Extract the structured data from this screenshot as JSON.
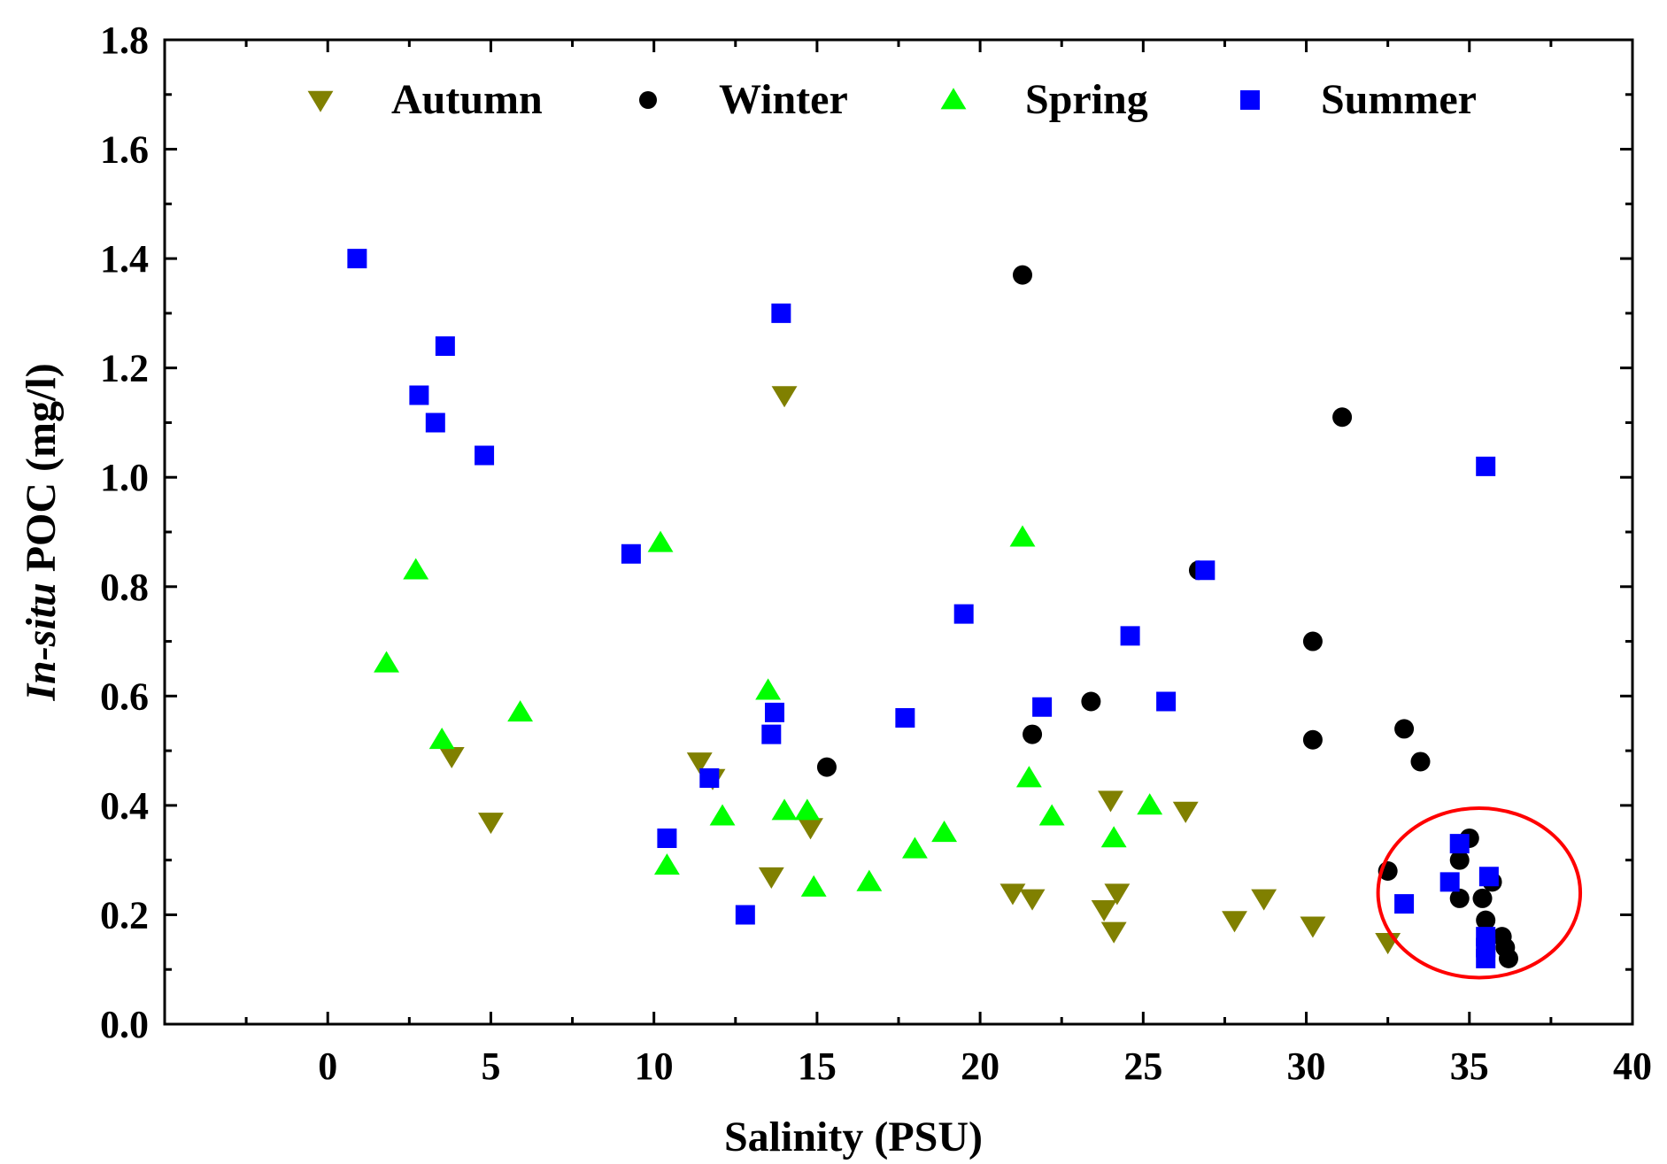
{
  "chart_data": {
    "type": "scatter",
    "title": "",
    "xlabel": "Salinity (PSU)",
    "ylabel_italic": "In-situ",
    "ylabel_rest": " POC (mg/l)",
    "xlim": [
      -5,
      40
    ],
    "ylim": [
      0.0,
      1.8
    ],
    "x_ticks": [
      0,
      5,
      10,
      15,
      20,
      25,
      30,
      35,
      40
    ],
    "x_tick_labels": [
      "0",
      "5",
      "10",
      "15",
      "20",
      "25",
      "30",
      "35",
      "40"
    ],
    "y_ticks": [
      0.0,
      0.2,
      0.4,
      0.6,
      0.8,
      1.0,
      1.2,
      1.4,
      1.6,
      1.8
    ],
    "y_tick_labels": [
      "0.0",
      "0.2",
      "0.4",
      "0.6",
      "0.8",
      "1.0",
      "1.2",
      "1.4",
      "1.6",
      "1.8"
    ],
    "grid": false,
    "legend_position": "top",
    "series": [
      {
        "name": "Autumn",
        "marker": "triangle-down",
        "color": "#808000",
        "points": [
          [
            3.8,
            0.49
          ],
          [
            5.0,
            0.37
          ],
          [
            11.4,
            0.48
          ],
          [
            11.8,
            0.45
          ],
          [
            13.6,
            0.27
          ],
          [
            14.0,
            1.15
          ],
          [
            14.8,
            0.36
          ],
          [
            21.0,
            0.24
          ],
          [
            21.6,
            0.23
          ],
          [
            23.8,
            0.21
          ],
          [
            24.0,
            0.41
          ],
          [
            24.1,
            0.17
          ],
          [
            24.2,
            0.24
          ],
          [
            26.3,
            0.39
          ],
          [
            27.8,
            0.19
          ],
          [
            28.7,
            0.23
          ],
          [
            30.2,
            0.18
          ],
          [
            32.5,
            0.15
          ]
        ]
      },
      {
        "name": "Winter",
        "marker": "circle",
        "color": "#000000",
        "points": [
          [
            15.3,
            0.47
          ],
          [
            21.3,
            1.37
          ],
          [
            21.6,
            0.53
          ],
          [
            23.4,
            0.59
          ],
          [
            26.7,
            0.83
          ],
          [
            30.2,
            0.7
          ],
          [
            30.2,
            0.52
          ],
          [
            31.1,
            1.11
          ],
          [
            32.5,
            0.28
          ],
          [
            33.0,
            0.54
          ],
          [
            33.5,
            0.48
          ],
          [
            34.7,
            0.3
          ],
          [
            34.7,
            0.23
          ],
          [
            35.0,
            0.34
          ],
          [
            35.4,
            0.23
          ],
          [
            35.5,
            0.19
          ],
          [
            35.7,
            0.26
          ],
          [
            36.0,
            0.16
          ],
          [
            36.1,
            0.14
          ],
          [
            36.2,
            0.12
          ]
        ]
      },
      {
        "name": "Spring",
        "marker": "triangle-up",
        "color": "#00ff00",
        "points": [
          [
            1.8,
            0.66
          ],
          [
            2.7,
            0.83
          ],
          [
            3.5,
            0.52
          ],
          [
            5.9,
            0.57
          ],
          [
            10.2,
            0.88
          ],
          [
            10.4,
            0.29
          ],
          [
            12.1,
            0.38
          ],
          [
            13.5,
            0.61
          ],
          [
            14.0,
            0.39
          ],
          [
            14.7,
            0.39
          ],
          [
            14.9,
            0.25
          ],
          [
            16.6,
            0.26
          ],
          [
            18.0,
            0.32
          ],
          [
            18.9,
            0.35
          ],
          [
            21.3,
            0.89
          ],
          [
            21.5,
            0.45
          ],
          [
            22.2,
            0.38
          ],
          [
            24.1,
            0.34
          ],
          [
            25.2,
            0.4
          ]
        ]
      },
      {
        "name": "Summer",
        "marker": "square",
        "color": "#0000ff",
        "points": [
          [
            0.9,
            1.4
          ],
          [
            2.8,
            1.15
          ],
          [
            3.3,
            1.1
          ],
          [
            3.6,
            1.24
          ],
          [
            4.8,
            1.04
          ],
          [
            9.3,
            0.86
          ],
          [
            10.4,
            0.34
          ],
          [
            11.7,
            0.45
          ],
          [
            12.8,
            0.2
          ],
          [
            13.6,
            0.53
          ],
          [
            13.7,
            0.57
          ],
          [
            13.9,
            1.3
          ],
          [
            17.7,
            0.56
          ],
          [
            19.5,
            0.75
          ],
          [
            21.9,
            0.58
          ],
          [
            24.6,
            0.71
          ],
          [
            25.7,
            0.59
          ],
          [
            26.9,
            0.83
          ],
          [
            33.0,
            0.22
          ],
          [
            34.4,
            0.26
          ],
          [
            34.7,
            0.33
          ],
          [
            35.5,
            1.02
          ],
          [
            35.6,
            0.27
          ],
          [
            35.5,
            0.16
          ],
          [
            35.5,
            0.14
          ],
          [
            35.5,
            0.12
          ]
        ]
      }
    ],
    "annotation": {
      "shape": "ellipse",
      "color": "#ff0000",
      "center": [
        35.3,
        0.24
      ],
      "radius_x": 3.1,
      "radius_y": 0.155
    }
  }
}
